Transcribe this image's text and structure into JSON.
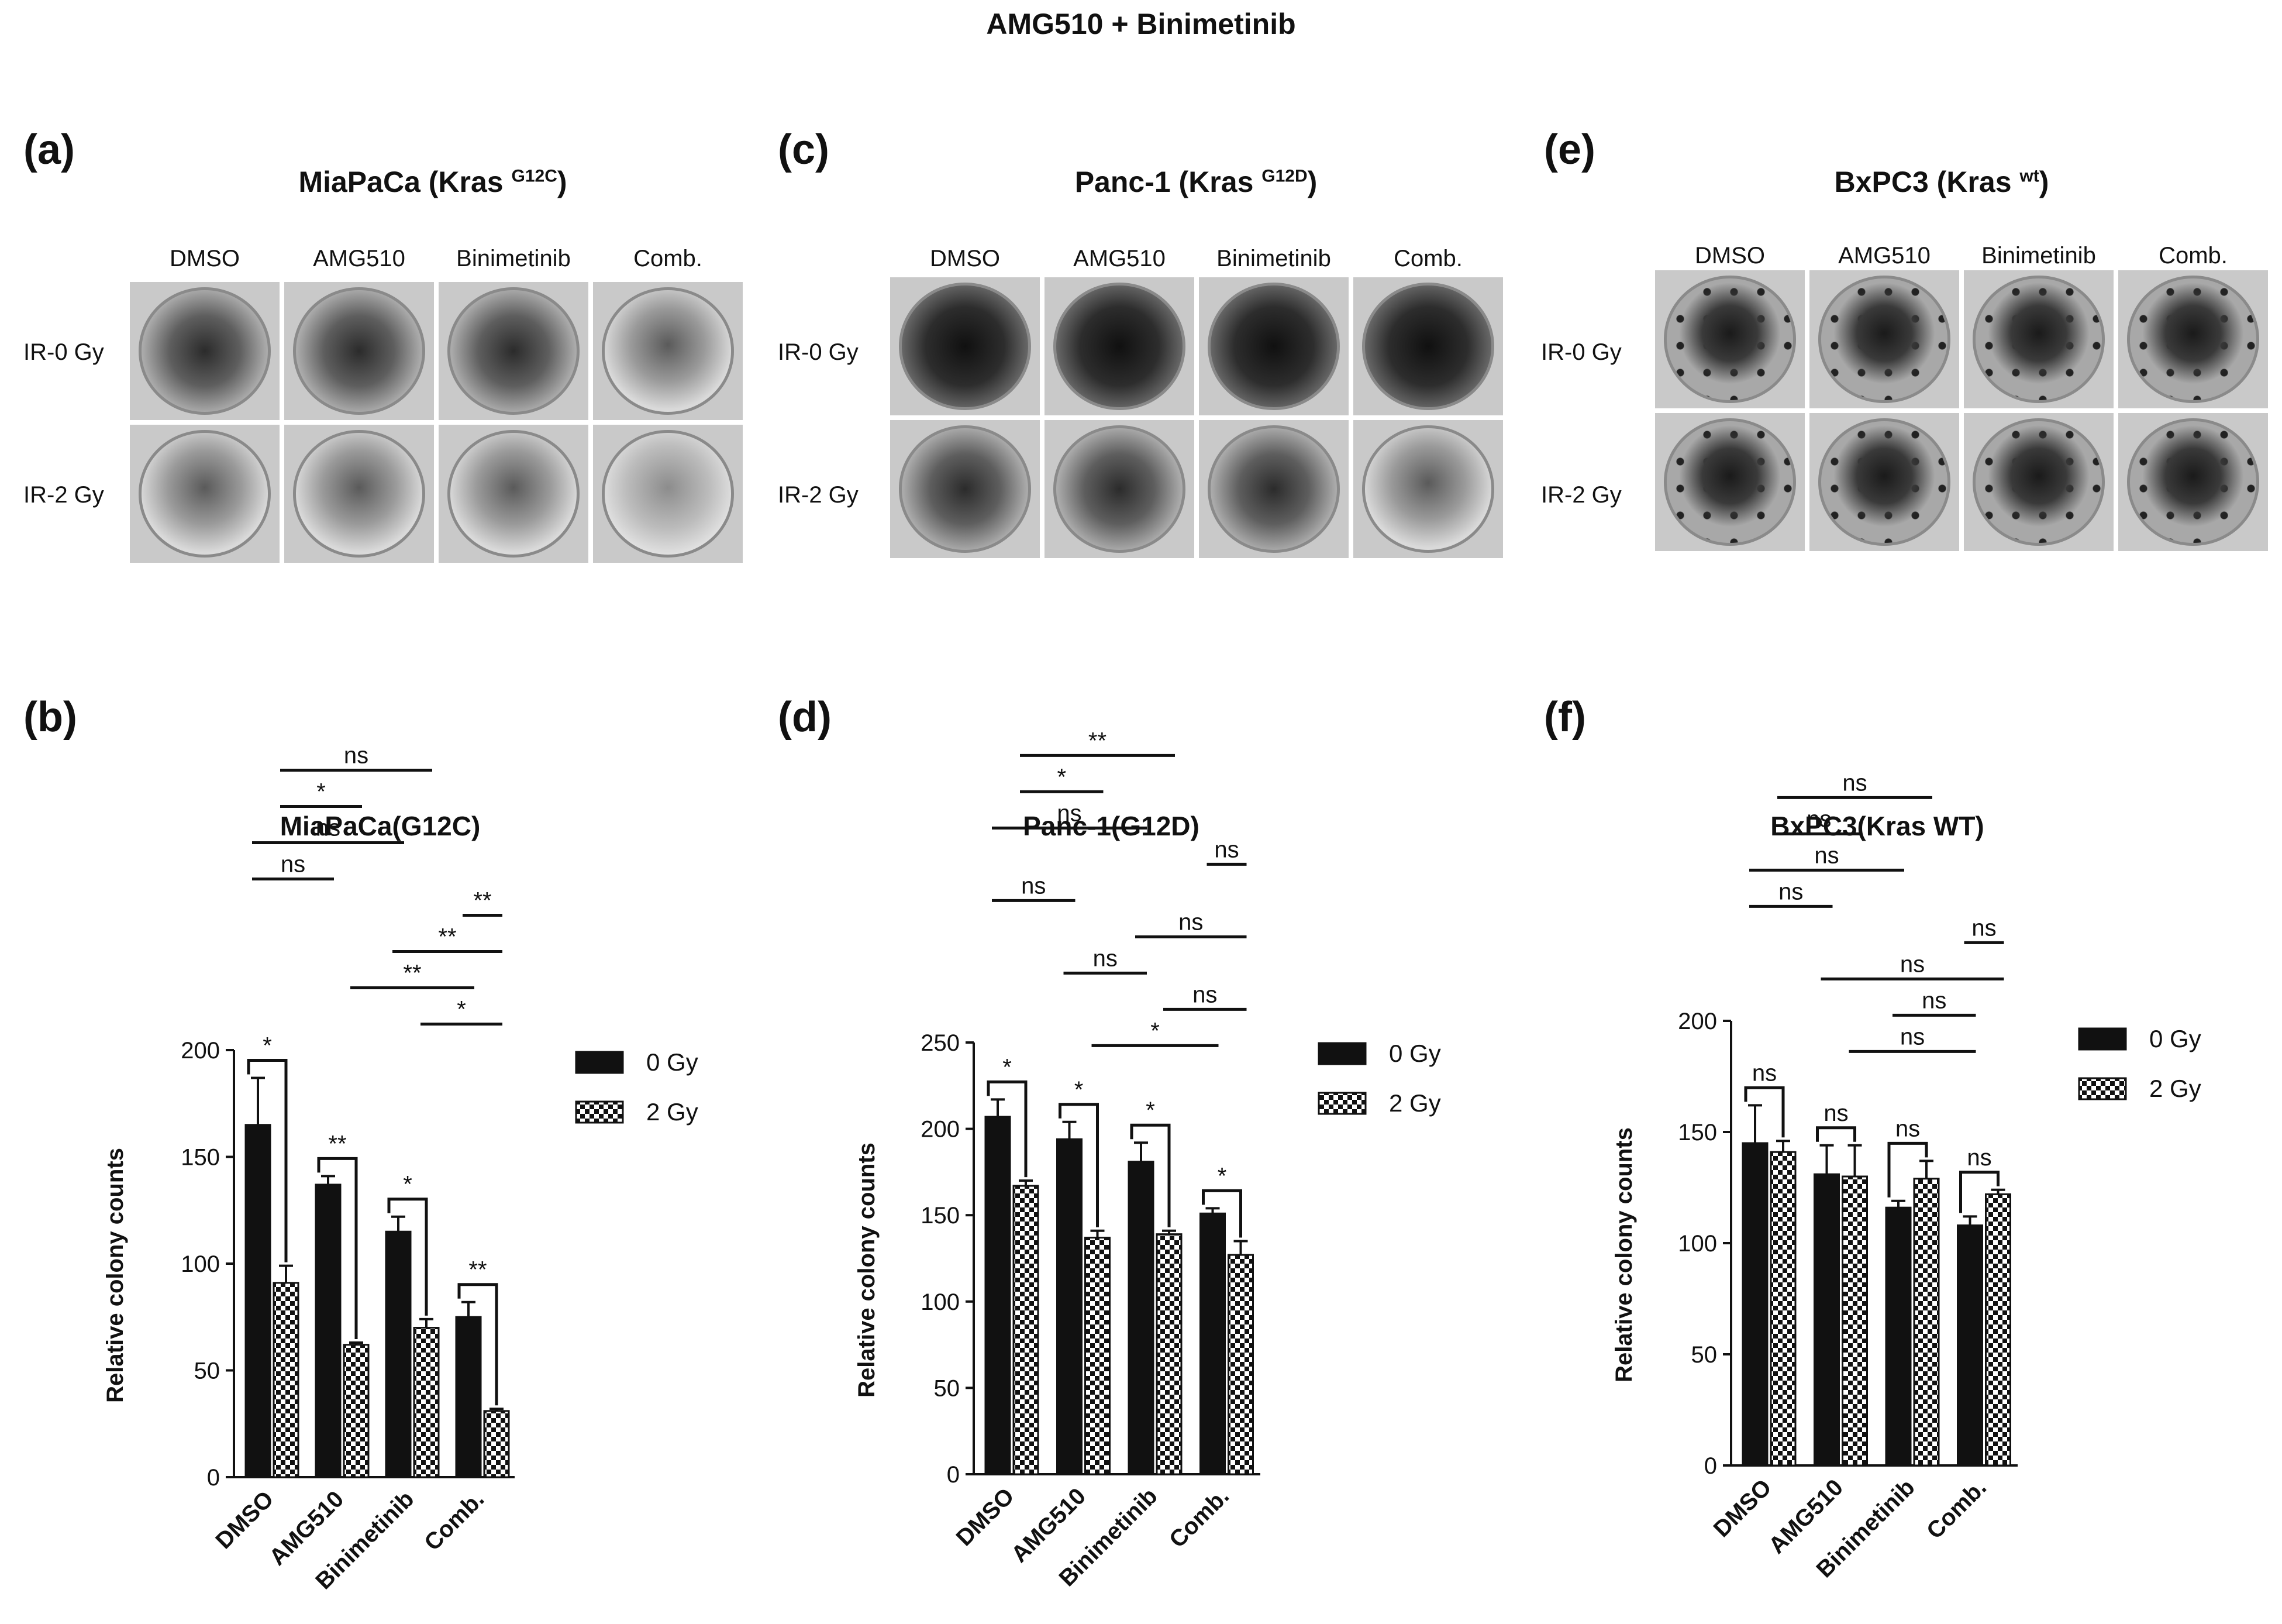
{
  "figure_title": "AMG510  + Binimetinib",
  "photo_panels": [
    {
      "letter": "(a)",
      "cell_line": "MiaPaCa (Kras ",
      "mutation": "G12C",
      "columns": [
        "DMSO",
        "AMG510",
        "Binimetinib",
        "Comb."
      ],
      "rows": [
        "IR-0 Gy",
        "IR-2 Gy"
      ],
      "plates": [
        [
          "medium",
          "medium",
          "medium",
          "sparse"
        ],
        [
          "sparse",
          "sparse",
          "sparse",
          "light"
        ]
      ]
    },
    {
      "letter": "(c)",
      "cell_line": "Panc-1 (Kras ",
      "mutation": "G12D",
      "columns": [
        "DMSO",
        "AMG510",
        "Binimetinib",
        "Comb."
      ],
      "rows": [
        "IR-0 Gy",
        "IR-2 Gy"
      ],
      "plates": [
        [
          "dense",
          "dense",
          "dense",
          "dense"
        ],
        [
          "medium",
          "medium",
          "medium",
          "sparse"
        ]
      ]
    },
    {
      "letter": "(e)",
      "cell_line": "BxPC3 (Kras ",
      "mutation": "wt",
      "columns": [
        "DMSO",
        "AMG510",
        "Binimetinib",
        "Comb."
      ],
      "rows": [
        "IR-0 Gy",
        "IR-2 Gy"
      ],
      "plates": [
        [
          "dotted",
          "dotted",
          "dotted",
          "dotted"
        ],
        [
          "dotted",
          "dotted",
          "dotted",
          "dotted"
        ]
      ]
    }
  ],
  "chart_data": [
    {
      "letter": "(b)",
      "type": "bar",
      "title": "MiaPaCa(G12C)",
      "categories": [
        "DMSO",
        "AMG510",
        "Binimetinib",
        "Comb."
      ],
      "ylabel": "Relative colony counts",
      "ylim": [
        0,
        200
      ],
      "yticks": [
        0,
        50,
        100,
        150,
        200
      ],
      "series": [
        {
          "name": "0 Gy",
          "style": "solid",
          "values": [
            165,
            137,
            115,
            75
          ],
          "errors": [
            22,
            4,
            7,
            7
          ]
        },
        {
          "name": "2 Gy",
          "style": "checker",
          "values": [
            91,
            62,
            70,
            31
          ],
          "errors": [
            8,
            1,
            4,
            1
          ]
        }
      ],
      "brackets": [
        {
          "between": [
            [
              0,
              0
            ],
            [
              0,
              1
            ]
          ],
          "label": "*",
          "level": 1
        },
        {
          "between": [
            [
              1,
              0
            ],
            [
              1,
              1
            ]
          ],
          "label": "**",
          "level": 1
        },
        {
          "between": [
            [
              2,
              0
            ],
            [
              2,
              1
            ]
          ],
          "label": "*",
          "level": 1
        },
        {
          "between": [
            [
              3,
              0
            ],
            [
              3,
              1
            ]
          ],
          "label": "**",
          "level": 1
        }
      ],
      "lines": [
        {
          "from": [
            2,
            1
          ],
          "to": [
            3,
            1
          ],
          "label": "*",
          "level": 1
        },
        {
          "from": [
            1,
            1
          ],
          "to": [
            3,
            0
          ],
          "label": "**",
          "level": 2
        },
        {
          "from": [
            2,
            0
          ],
          "to": [
            3,
            1
          ],
          "label": "**",
          "level": 3
        },
        {
          "from": [
            3,
            0
          ],
          "to": [
            3,
            1
          ],
          "label": "**",
          "level": 4
        },
        {
          "from": [
            0,
            0
          ],
          "to": [
            1,
            0
          ],
          "label": "ns",
          "level": 5
        },
        {
          "from": [
            0,
            0
          ],
          "to": [
            2,
            0
          ],
          "label": "ns",
          "level": 6
        },
        {
          "from": [
            0,
            1
          ],
          "to": [
            1,
            1
          ],
          "label": "*",
          "level": 7
        },
        {
          "from": [
            0,
            1
          ],
          "to": [
            2,
            1
          ],
          "label": "ns",
          "level": 8
        }
      ]
    },
    {
      "letter": "(d)",
      "type": "bar",
      "title": "Panc-1(G12D)",
      "categories": [
        "DMSO",
        "AMG510",
        "Binimetinib",
        "Comb."
      ],
      "ylabel": "Relative colony counts",
      "ylim": [
        0,
        250
      ],
      "yticks": [
        0,
        50,
        100,
        150,
        200,
        250
      ],
      "series": [
        {
          "name": "0 Gy",
          "style": "solid",
          "values": [
            207,
            194,
            181,
            151
          ],
          "errors": [
            10,
            10,
            11,
            3
          ]
        },
        {
          "name": "2 Gy",
          "style": "checker",
          "values": [
            167,
            137,
            139,
            127
          ],
          "errors": [
            3,
            4,
            2,
            8
          ]
        }
      ],
      "brackets": [
        {
          "between": [
            [
              0,
              0
            ],
            [
              0,
              1
            ]
          ],
          "label": "*",
          "level": 1
        },
        {
          "between": [
            [
              1,
              0
            ],
            [
              1,
              1
            ]
          ],
          "label": "*",
          "level": 1
        },
        {
          "between": [
            [
              2,
              0
            ],
            [
              2,
              1
            ]
          ],
          "label": "*",
          "level": 1
        },
        {
          "between": [
            [
              3,
              0
            ],
            [
              3,
              1
            ]
          ],
          "label": "*",
          "level": 1
        }
      ],
      "lines": [
        {
          "from": [
            1,
            1
          ],
          "to": [
            3,
            0
          ],
          "label": "*",
          "level": 1
        },
        {
          "from": [
            2,
            1
          ],
          "to": [
            3,
            1
          ],
          "label": "ns",
          "level": 2
        },
        {
          "from": [
            1,
            0
          ],
          "to": [
            2,
            0
          ],
          "label": "ns",
          "level": 3
        },
        {
          "from": [
            2,
            0
          ],
          "to": [
            3,
            1
          ],
          "label": "ns",
          "level": 4
        },
        {
          "from": [
            0,
            0
          ],
          "to": [
            1,
            0
          ],
          "label": "ns",
          "level": 5
        },
        {
          "from": [
            3,
            0
          ],
          "to": [
            3,
            1
          ],
          "label": "ns",
          "level": 6
        },
        {
          "from": [
            0,
            0
          ],
          "to": [
            2,
            0
          ],
          "label": "ns",
          "level": 7
        },
        {
          "from": [
            0,
            1
          ],
          "to": [
            1,
            1
          ],
          "label": "*",
          "level": 8
        },
        {
          "from": [
            0,
            1
          ],
          "to": [
            2,
            1
          ],
          "label": "**",
          "level": 9
        }
      ]
    },
    {
      "letter": "(f)",
      "type": "bar",
      "title": "BxPC3(Kras WT)",
      "categories": [
        "DMSO",
        "AMG510",
        "Binimetinib",
        "Comb."
      ],
      "ylabel": "Relative colony counts",
      "ylim": [
        0,
        200
      ],
      "yticks": [
        0,
        50,
        100,
        150,
        200
      ],
      "series": [
        {
          "name": "0 Gy",
          "style": "solid",
          "values": [
            145,
            131,
            116,
            108
          ],
          "errors": [
            17,
            13,
            3,
            4
          ]
        },
        {
          "name": "2 Gy",
          "style": "checker",
          "values": [
            141,
            130,
            129,
            122
          ],
          "errors": [
            5,
            14,
            8,
            2
          ]
        }
      ],
      "brackets": [
        {
          "between": [
            [
              0,
              0
            ],
            [
              0,
              1
            ]
          ],
          "label": "ns",
          "level": 1
        },
        {
          "between": [
            [
              1,
              0
            ],
            [
              1,
              1
            ]
          ],
          "label": "ns",
          "level": 1
        },
        {
          "between": [
            [
              2,
              0
            ],
            [
              2,
              1
            ]
          ],
          "label": "ns",
          "level": 1
        },
        {
          "between": [
            [
              3,
              0
            ],
            [
              3,
              1
            ]
          ],
          "label": "ns",
          "level": 1
        }
      ],
      "lines": [
        {
          "from": [
            1,
            1
          ],
          "to": [
            3,
            0
          ],
          "label": "ns",
          "level": 1
        },
        {
          "from": [
            2,
            0
          ],
          "to": [
            3,
            0
          ],
          "label": "ns",
          "level": 2
        },
        {
          "from": [
            1,
            0
          ],
          "to": [
            3,
            1
          ],
          "label": "ns",
          "level": 3
        },
        {
          "from": [
            3,
            0
          ],
          "to": [
            3,
            1
          ],
          "label": "ns",
          "level": 4
        },
        {
          "from": [
            0,
            0
          ],
          "to": [
            1,
            0
          ],
          "label": "ns",
          "level": 5
        },
        {
          "from": [
            0,
            0
          ],
          "to": [
            2,
            0
          ],
          "label": "ns",
          "level": 6
        },
        {
          "from": [
            0,
            1
          ],
          "to": [
            1,
            1
          ],
          "label": "ns",
          "level": 7
        },
        {
          "from": [
            0,
            1
          ],
          "to": [
            2,
            1
          ],
          "label": "ns",
          "level": 8
        }
      ]
    }
  ]
}
